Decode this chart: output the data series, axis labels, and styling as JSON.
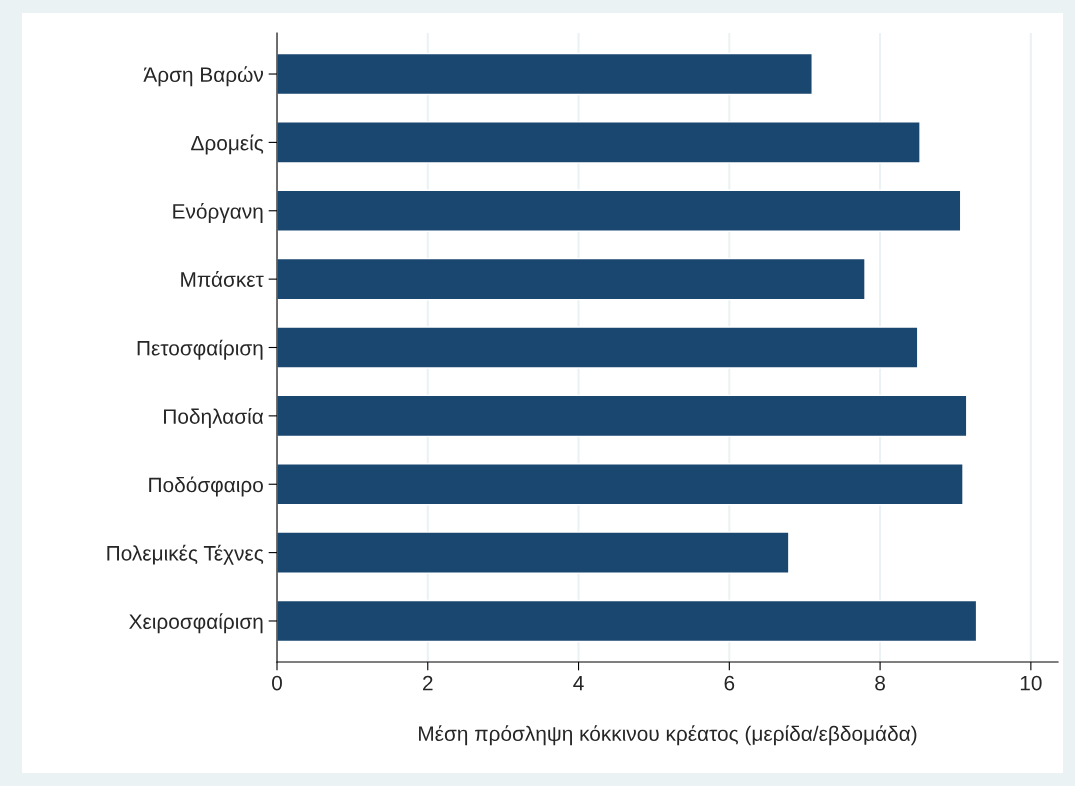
{
  "chart_data": {
    "type": "bar",
    "orientation": "horizontal",
    "categories": [
      "Άρση Βαρών",
      "Δρομείς",
      "Ενόργανη",
      "Μπάσκετ",
      "Πετοσφαίριση",
      "Ποδηλασία",
      "Ποδόσφαιρο",
      "Πολεμικές Τέχνες",
      "Χειροσφαίριση"
    ],
    "values": [
      7.1,
      8.53,
      9.07,
      7.8,
      8.5,
      9.15,
      9.1,
      6.79,
      9.28
    ],
    "color": "#1a476f",
    "xlabel": "Μέση πρόσληψη κόκκινου κρέατος (μερίδα/εβδομάδα)",
    "xlim": [
      0,
      10.36
    ],
    "xticks": [
      0,
      2,
      4,
      6,
      8,
      10
    ],
    "grid": "x",
    "legend": false
  }
}
